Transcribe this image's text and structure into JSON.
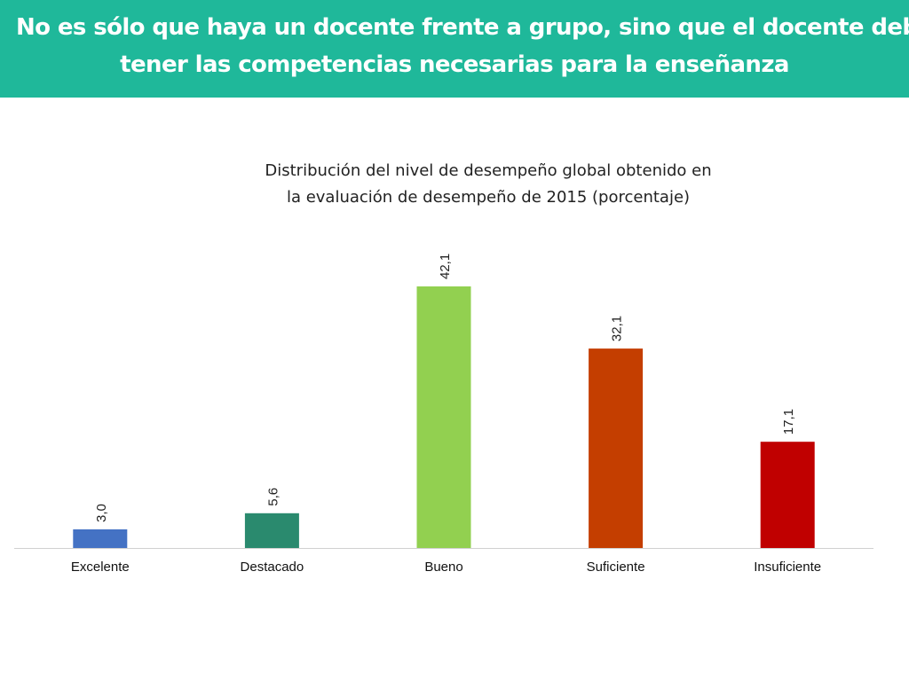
{
  "header": {
    "line1": "No es sólo que haya un docente frente a grupo, sino que el docente debe",
    "line2": "tener las competencias necesarias para la enseñanza"
  },
  "colors": {
    "banner": "#1fb89a",
    "banner_text": "#ffffff"
  },
  "chart_data": {
    "type": "bar",
    "title_line1": "Distribución del nivel de desempeño global obtenido en",
    "title_line2": "la evaluación de desempeño de 2015  (porcentaje)",
    "categories": [
      "Excelente",
      "Destacado",
      "Bueno",
      "Suficiente",
      "Insuficiente"
    ],
    "values": [
      3.0,
      5.6,
      42.1,
      32.1,
      17.1
    ],
    "labels": [
      "3,0",
      "5,6",
      "42,1",
      "32,1",
      "17,1"
    ],
    "colors": [
      "#4472c4",
      "#2a8a6e",
      "#92d050",
      "#c43e00",
      "#c00000"
    ],
    "xlabel": "",
    "ylabel": "",
    "ylim": [
      0,
      45
    ],
    "grid": false,
    "legend": "none"
  }
}
